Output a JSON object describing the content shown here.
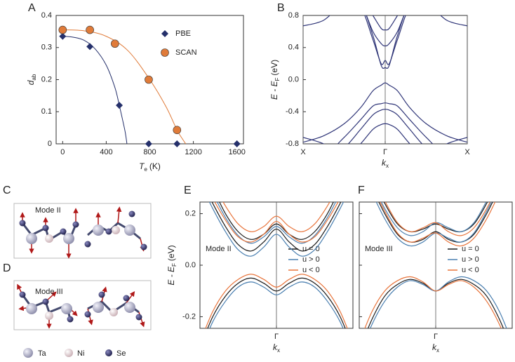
{
  "chart_data": [
    {
      "panel": "A",
      "type": "scatter",
      "xlabel": {
        "text": "T",
        "sub": "e",
        "unit": "(K)"
      },
      "ylabel": {
        "text": "d",
        "sub": "ab"
      },
      "xlim": [
        -60,
        1660
      ],
      "xticks": [
        0,
        400,
        800,
        1200,
        1600
      ],
      "ylim": [
        0,
        0.4
      ],
      "yticks": [
        0,
        0.1,
        0.2,
        0.3,
        0.4
      ],
      "legend": "right",
      "series": [
        {
          "name": "PBE",
          "color": "#25306b",
          "marker": "diamond",
          "x": [
            0,
            250,
            520,
            790,
            1050,
            1600
          ],
          "values": [
            0.335,
            0.303,
            0.12,
            0,
            0,
            0
          ]
        },
        {
          "name": "SCAN",
          "color": "#e07b39",
          "marker": "circle",
          "x": [
            0,
            250,
            480,
            790,
            1050
          ],
          "values": [
            0.355,
            0.355,
            0.312,
            0.2,
            0.043
          ]
        }
      ],
      "fits": [
        {
          "color": "#25306b",
          "x": [
            0,
            100,
            200,
            300,
            400,
            480,
            520,
            550,
            575,
            590
          ],
          "values": [
            0.335,
            0.332,
            0.322,
            0.295,
            0.245,
            0.175,
            0.12,
            0.075,
            0.035,
            0
          ]
        },
        {
          "color": "#e07b39",
          "x": [
            0,
            200,
            400,
            600,
            800,
            950,
            1050,
            1100,
            1130
          ],
          "values": [
            0.355,
            0.352,
            0.335,
            0.29,
            0.2,
            0.115,
            0.043,
            0.015,
            0
          ]
        }
      ]
    },
    {
      "panel": "B",
      "type": "line",
      "xlabel": {
        "text": "k",
        "sub": "x"
      },
      "ylabel": {
        "text": "E -  E",
        "sub": "F",
        "unit": "(eV)"
      },
      "xlim": [
        -1,
        1
      ],
      "xticks": [
        {
          "value": -1,
          "label": "X"
        },
        {
          "value": 0,
          "label": "Γ"
        },
        {
          "value": 1,
          "label": "X"
        }
      ],
      "grid_x": true,
      "ylim": [
        -0.8,
        0.8
      ],
      "yticks": [
        {
          "value": -0.8,
          "label": "-0.8"
        },
        {
          "value": -0.4,
          "label": "-0.4"
        },
        {
          "value": 0,
          "label": "0.0"
        },
        0.4,
        0.8
      ],
      "x": [
        -1,
        -0.75,
        -0.5,
        -0.3,
        -0.15,
        -0.05,
        0,
        0.05,
        0.15,
        0.3,
        0.5,
        0.75,
        1
      ],
      "series": [
        {
          "color": "#2e3477",
          "bands": [
            [
              0.67,
              0.74,
              0.95,
              0.9,
              0.5,
              0.2,
              0.24,
              0.2,
              0.5,
              0.9,
              0.95,
              0.74,
              0.67
            ],
            [
              1.2,
              1.1,
              1.0,
              0.95,
              0.55,
              0.18,
              0.15,
              0.18,
              0.55,
              0.95,
              1.0,
              1.1,
              1.2
            ],
            [
              1.3,
              1.2,
              1.1,
              0.95,
              0.6,
              0.45,
              0.42,
              0.45,
              0.6,
              0.95,
              1.1,
              1.2,
              1.3
            ],
            [
              1.4,
              1.3,
              1.2,
              1.05,
              0.8,
              0.64,
              0.62,
              0.64,
              0.8,
              1.05,
              1.2,
              1.3,
              1.4
            ],
            [
              -0.78,
              -0.7,
              -0.55,
              -0.35,
              -0.14,
              -0.07,
              -0.04,
              -0.07,
              -0.14,
              -0.35,
              -0.55,
              -0.7,
              -0.78
            ],
            [
              -1,
              -0.95,
              -0.72,
              -0.5,
              -0.33,
              -0.3,
              -0.29,
              -0.3,
              -0.33,
              -0.5,
              -0.72,
              -0.95,
              -1
            ],
            [
              -1.1,
              -1,
              -0.85,
              -0.62,
              -0.44,
              -0.38,
              -0.37,
              -0.38,
              -0.44,
              -0.62,
              -0.85,
              -1,
              -1.1
            ],
            [
              -1.2,
              -1.1,
              -1,
              -0.8,
              -0.62,
              -0.56,
              -0.55,
              -0.56,
              -0.62,
              -0.8,
              -1,
              -1.1,
              -1.2
            ],
            [
              -0.72,
              -0.8,
              -0.95,
              -1.1,
              -1.2,
              -1.2,
              -1.2,
              -1.2,
              -1.2,
              -1.1,
              -0.95,
              -0.8,
              -0.72
            ]
          ]
        }
      ]
    },
    {
      "panel": "E",
      "type": "line",
      "annotation": "Mode II",
      "legend": "right",
      "xlabel": {
        "text": "k",
        "sub": "x"
      },
      "ylabel": {
        "text": "E -  E",
        "sub": "F",
        "unit": "(eV)"
      },
      "xlim": [
        -0.3,
        0.3
      ],
      "xticks": [
        {
          "value": 0,
          "label": "Γ"
        }
      ],
      "grid_x": true,
      "ylim": [
        -0.245,
        0.245
      ],
      "yticks": [
        -0.2,
        {
          "value": 0,
          "label": "0.0"
        },
        0.2
      ],
      "x": [
        -0.3,
        -0.25,
        -0.2,
        -0.15,
        -0.1,
        -0.05,
        0,
        0.05,
        0.1,
        0.15,
        0.2,
        0.25,
        0.3
      ],
      "series": [
        {
          "name": "u = 0",
          "color": "#1a1a1a",
          "bands": [
            [
              -0.32,
              -0.2,
              -0.12,
              -0.07,
              -0.05,
              -0.07,
              -0.1,
              -0.07,
              -0.05,
              -0.07,
              -0.12,
              -0.2,
              -0.32
            ],
            [
              0.34,
              0.24,
              0.15,
              0.08,
              0.055,
              0.09,
              0.14,
              0.09,
              0.055,
              0.08,
              0.15,
              0.24,
              0.34
            ],
            [
              0.4,
              0.3,
              0.2,
              0.13,
              0.1,
              0.12,
              0.16,
              0.12,
              0.1,
              0.13,
              0.2,
              0.3,
              0.4
            ]
          ]
        },
        {
          "name": "u > 0",
          "color": "#4a7fb0",
          "bands": [
            [
              -0.34,
              -0.22,
              -0.14,
              -0.085,
              -0.065,
              -0.085,
              -0.115,
              -0.085,
              -0.065,
              -0.085,
              -0.14,
              -0.22,
              -0.34
            ],
            [
              0.32,
              0.22,
              0.13,
              0.06,
              0.035,
              0.07,
              0.12,
              0.07,
              0.035,
              0.06,
              0.13,
              0.22,
              0.32
            ],
            [
              0.38,
              0.28,
              0.185,
              0.115,
              0.085,
              0.11,
              0.15,
              0.11,
              0.085,
              0.115,
              0.185,
              0.28,
              0.38
            ]
          ]
        },
        {
          "name": "u < 0",
          "color": "#e8743b",
          "bands": [
            [
              -0.3,
              -0.18,
              -0.1,
              -0.055,
              -0.035,
              -0.055,
              -0.085,
              -0.055,
              -0.035,
              -0.055,
              -0.1,
              -0.18,
              -0.3
            ],
            [
              0.36,
              0.26,
              0.175,
              0.11,
              0.09,
              0.12,
              0.17,
              0.12,
              0.09,
              0.11,
              0.175,
              0.26,
              0.36
            ],
            [
              0.42,
              0.32,
              0.23,
              0.16,
              0.13,
              0.15,
              0.19,
              0.15,
              0.13,
              0.16,
              0.23,
              0.32,
              0.42
            ]
          ]
        }
      ]
    },
    {
      "panel": "F",
      "type": "line",
      "annotation": "Mode III",
      "legend": "right",
      "ytick_labels": false,
      "xlabel": {
        "text": "k",
        "sub": "x"
      },
      "xlim": [
        -0.3,
        0.3
      ],
      "xticks": [
        {
          "value": 0,
          "label": "Γ"
        }
      ],
      "grid_x": true,
      "ylim": [
        -0.245,
        0.245
      ],
      "yticks": [
        -0.2,
        0,
        0.2
      ],
      "x": [
        -0.3,
        -0.25,
        -0.2,
        -0.15,
        -0.1,
        -0.05,
        0,
        0.05,
        0.1,
        0.15,
        0.2,
        0.25,
        0.3
      ],
      "series": [
        {
          "name": "u = 0",
          "color": "#1a1a1a",
          "bands": [
            [
              -0.33,
              -0.21,
              -0.12,
              -0.075,
              -0.055,
              -0.07,
              -0.1,
              -0.07,
              -0.055,
              -0.075,
              -0.12,
              -0.21,
              -0.33
            ],
            [
              0.4,
              0.3,
              0.2,
              0.12,
              0.09,
              0.1,
              0.13,
              0.1,
              0.09,
              0.12,
              0.2,
              0.3,
              0.4
            ],
            [
              0.44,
              0.34,
              0.24,
              0.16,
              0.13,
              0.14,
              0.16,
              0.14,
              0.13,
              0.16,
              0.24,
              0.34,
              0.44
            ]
          ]
        },
        {
          "name": "u > 0",
          "color": "#4a7fb0",
          "bands": [
            [
              -0.35,
              -0.23,
              -0.14,
              -0.085,
              -0.06,
              -0.075,
              -0.1,
              -0.065,
              -0.045,
              -0.06,
              -0.1,
              -0.18,
              -0.3
            ],
            [
              0.38,
              0.28,
              0.18,
              0.105,
              0.075,
              0.09,
              0.125,
              0.105,
              0.09,
              0.125,
              0.21,
              0.31,
              0.41
            ],
            [
              0.42,
              0.32,
              0.22,
              0.145,
              0.115,
              0.13,
              0.165,
              0.145,
              0.13,
              0.165,
              0.25,
              0.35,
              0.45
            ]
          ]
        },
        {
          "name": "u < 0",
          "color": "#e8743b",
          "bands": [
            [
              -0.3,
              -0.18,
              -0.1,
              -0.06,
              -0.045,
              -0.065,
              -0.1,
              -0.075,
              -0.06,
              -0.085,
              -0.14,
              -0.23,
              -0.35
            ],
            [
              0.41,
              0.31,
              0.21,
              0.125,
              0.09,
              0.105,
              0.125,
              0.09,
              0.075,
              0.105,
              0.18,
              0.28,
              0.38
            ],
            [
              0.45,
              0.35,
              0.25,
              0.165,
              0.13,
              0.145,
              0.165,
              0.13,
              0.115,
              0.145,
              0.22,
              0.32,
              0.42
            ]
          ]
        }
      ]
    }
  ],
  "structures": {
    "panels": [
      {
        "letter": "C",
        "label": "Mode II"
      },
      {
        "letter": "D",
        "label": "Mode III"
      }
    ],
    "legend": [
      "Ta",
      "Ni",
      "Se"
    ]
  }
}
